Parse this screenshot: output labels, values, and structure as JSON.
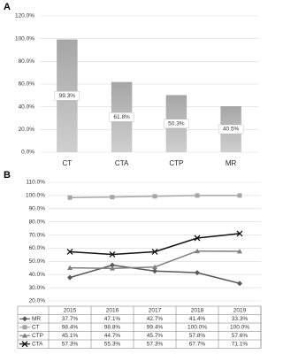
{
  "chart_data": [
    {
      "type": "bar",
      "label": "A",
      "categories": [
        "CT",
        "CTA",
        "CTP",
        "MR"
      ],
      "values": [
        99.3,
        61.8,
        50.3,
        40.5
      ],
      "value_labels": [
        "99.3%",
        "61.8%",
        "50.3%",
        "40.5%"
      ],
      "color": "#a6a6a6",
      "ylim": [
        0,
        120
      ],
      "yticks": [
        {
          "value": 0,
          "label": "0.0%"
        },
        {
          "value": 20,
          "label": "20.0%"
        },
        {
          "value": 40,
          "label": "40.0%"
        },
        {
          "value": 60,
          "label": "60.0%"
        },
        {
          "value": 80,
          "label": "80.0%"
        },
        {
          "value": 100,
          "label": "100.0%"
        },
        {
          "value": 120,
          "label": "120.0%"
        }
      ]
    },
    {
      "type": "line",
      "label": "B",
      "categories": [
        "2015",
        "2016",
        "2017",
        "2018",
        "2019"
      ],
      "series": [
        {
          "name": "MR",
          "color": "#595959",
          "marker": "diamond",
          "values": [
            37.7,
            47.1,
            42.7,
            41.4,
            33.3
          ],
          "value_labels": [
            "37.7%",
            "47.1%",
            "42.7%",
            "41.4%",
            "33.3%"
          ]
        },
        {
          "name": "CT",
          "color": "#a6a6a6",
          "marker": "square",
          "values": [
            98.4,
            98.8,
            99.4,
            100.0,
            100.0
          ],
          "value_labels": [
            "98.4%",
            "98.8%",
            "99.4%",
            "100.0%",
            "100.0%"
          ]
        },
        {
          "name": "CTP",
          "color": "#7f7f7f",
          "marker": "triangle",
          "values": [
            45.1,
            44.7,
            45.7,
            57.8,
            57.6
          ],
          "value_labels": [
            "45.1%",
            "44.7%",
            "45.7%",
            "57.8%",
            "57.6%"
          ]
        },
        {
          "name": "CTA",
          "color": "#111111",
          "marker": "x",
          "values": [
            57.3,
            55.3,
            57.3,
            67.7,
            71.1
          ],
          "value_labels": [
            "57.3%",
            "55.3%",
            "57.3%",
            "67.7%",
            "71.1%"
          ]
        }
      ],
      "ylim": [
        20,
        110
      ],
      "yticks": [
        {
          "value": 20,
          "label": "20.0%"
        },
        {
          "value": 30,
          "label": "30.0%"
        },
        {
          "value": 40,
          "label": "40.0%"
        },
        {
          "value": 50,
          "label": "50.0%"
        },
        {
          "value": 60,
          "label": "60.0%"
        },
        {
          "value": 70,
          "label": "70.0%"
        },
        {
          "value": 80,
          "label": "80.0%"
        },
        {
          "value": 90,
          "label": "90.0%"
        },
        {
          "value": 100,
          "label": "100.0%"
        },
        {
          "value": 110,
          "label": "110.0%"
        }
      ]
    }
  ]
}
